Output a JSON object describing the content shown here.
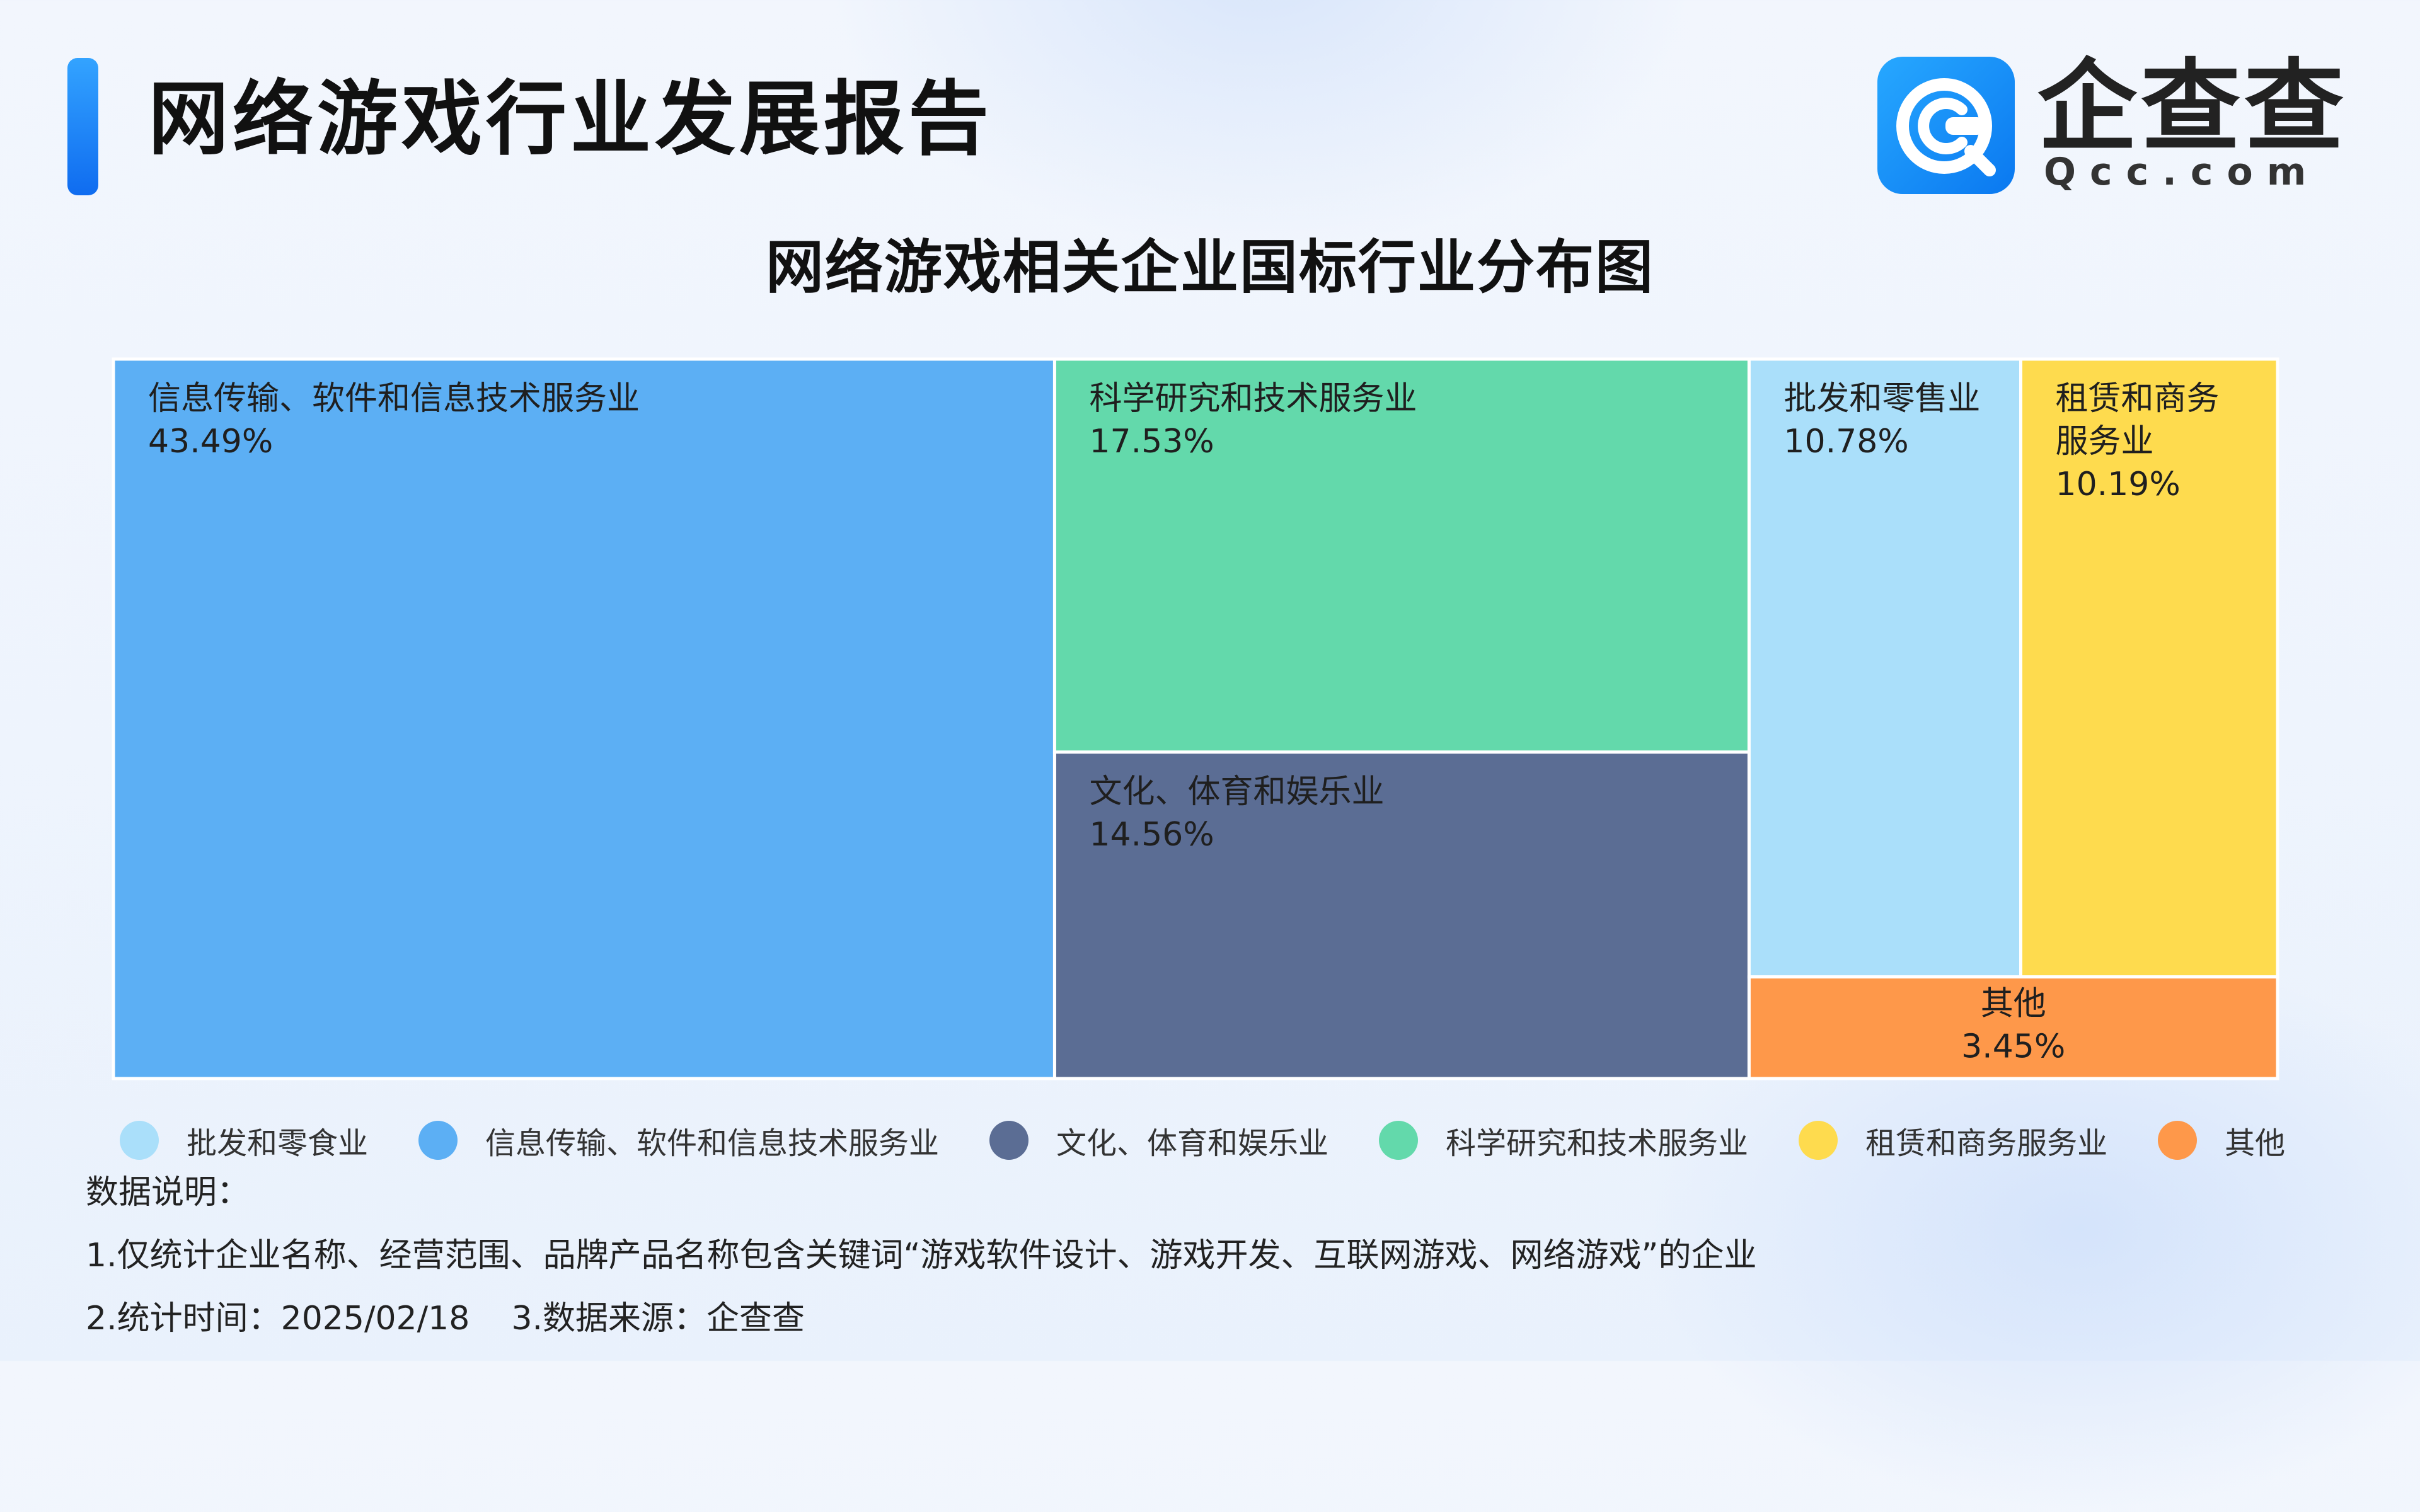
{
  "header": {
    "report_title": "网络游戏行业发展报告",
    "logo_text": "企查查",
    "logo_domain": "Qcc.com"
  },
  "chart_data": {
    "type": "treemap",
    "title": "网络游戏相关企业国标行业分布图",
    "unit": "%",
    "items": [
      {
        "name": "信息传输、软件和信息技术服务业",
        "label_lines": [
          "信息传输、软件和信息技术服务业"
        ],
        "value": 43.49,
        "value_label": "43.49%",
        "color": "#5caff4"
      },
      {
        "name": "科学研究和技术服务业",
        "label_lines": [
          "科学研究和技术服务业"
        ],
        "value": 17.53,
        "value_label": "17.53%",
        "color": "#63d9ab"
      },
      {
        "name": "文化、体育和娱乐业",
        "label_lines": [
          "文化、体育和娱乐业"
        ],
        "value": 14.56,
        "value_label": "14.56%",
        "color": "#5b6d94"
      },
      {
        "name": "批发和零售业",
        "label_lines": [
          "批发和零售业"
        ],
        "value": 10.78,
        "value_label": "10.78%",
        "color": "#aadffa"
      },
      {
        "name": "租赁和商务服务业",
        "label_lines": [
          "租赁和商务",
          "服务业"
        ],
        "value": 10.19,
        "value_label": "10.19%",
        "color": "#fedb4e"
      },
      {
        "name": "其他",
        "label_lines": [
          "其他"
        ],
        "value": 3.45,
        "value_label": "3.45%",
        "color": "#fe984a"
      }
    ],
    "legend": [
      {
        "label": "批发和零食业",
        "color": "#aadffa"
      },
      {
        "label": "信息传输、软件和信息技术服务业",
        "color": "#5caff4"
      },
      {
        "label": "文化、体育和娱乐业",
        "color": "#5b6d94"
      },
      {
        "label": "科学研究和技术服务业",
        "color": "#63d9ab"
      },
      {
        "label": "租赁和商务服务业",
        "color": "#fedb4e"
      },
      {
        "label": "其他",
        "color": "#fe984a"
      }
    ]
  },
  "notes": {
    "heading": "数据说明：",
    "line1": "1.仅统计企业名称、经营范围、品牌产品名称包含关键词“游戏软件设计、游戏开发、互联网游戏、网络游戏”的企业",
    "line2": "2.统计时间：2025/02/18    3.数据来源：企查查"
  }
}
